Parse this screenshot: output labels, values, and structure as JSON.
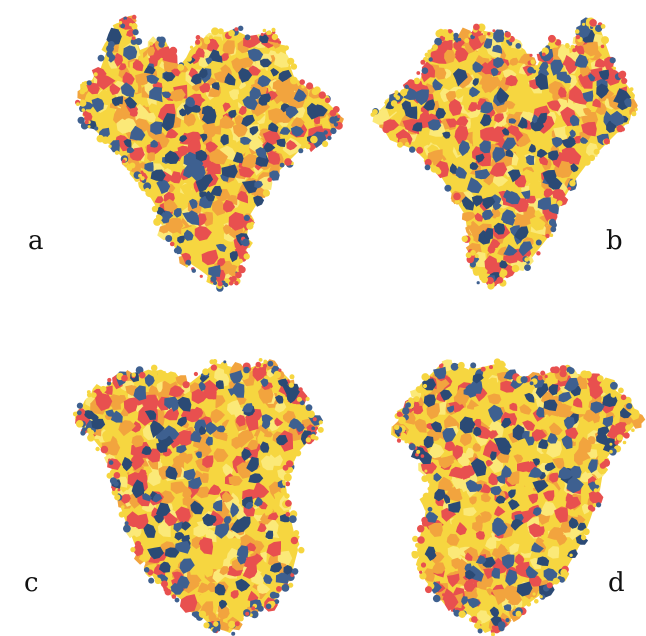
{
  "figure": {
    "panels": [
      {
        "id": "a",
        "label": "a"
      },
      {
        "id": "b",
        "label": "b"
      },
      {
        "id": "c",
        "label": "c"
      },
      {
        "id": "d",
        "label": "d"
      }
    ]
  },
  "colors": {
    "yellow": "#f6d640",
    "pale_yellow": "#fbe978",
    "orange": "#f2a43e",
    "red": "#e8504f",
    "blue": "#3e6090",
    "dark_blue": "#2b4a75"
  }
}
